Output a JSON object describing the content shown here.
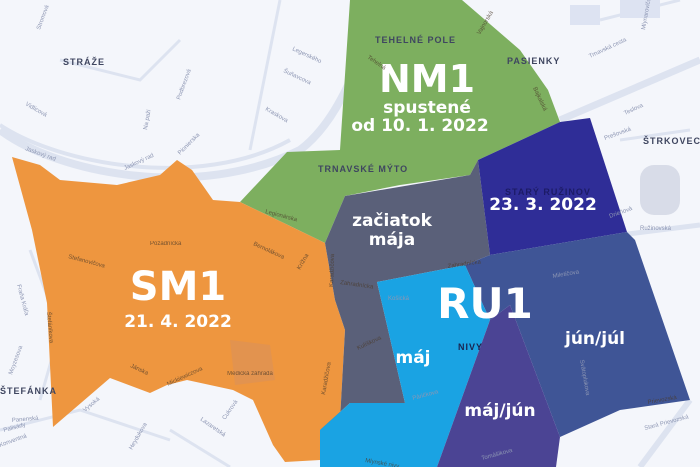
{
  "zones": [
    {
      "code": "NM1",
      "status_lines": [
        "spustené",
        "od 10. 1. 2022"
      ],
      "color": "#7daf5f"
    },
    {
      "code": "SM1",
      "status_lines": [
        "21. 4. 2022"
      ],
      "color": "#ee963f"
    },
    {
      "code": "RU1",
      "color": "#3f5596"
    },
    {
      "subzone": "Starý Ružinov",
      "label": "23. 3. 2022",
      "color": "#2f2d97"
    },
    {
      "subzone": "začiatok mája",
      "label_lines": [
        "začiatok",
        "mája"
      ],
      "color": "#5a6079"
    },
    {
      "subzone": "máj",
      "label": "máj",
      "color": "#1aa3e3"
    },
    {
      "subzone": "máj/jún",
      "label": "máj/jún",
      "color": "#4b4494"
    },
    {
      "subzone": "jún/júl",
      "label": "jún/júl",
      "color": "#3f5596"
    }
  ],
  "districts": [
    "STRÁŽE",
    "TEHELNÉ POLE",
    "PASIENKY",
    "TRNAVSKÉ MÝTO",
    "STARÝ RUŽINOV",
    "ŠTRKOVEC",
    "NIVY",
    "ŠTEFÁNKA"
  ],
  "streets": [
    "Jaskový rad",
    "Jaskový rad",
    "Podbrezová",
    "Pionierska",
    "Legionárska",
    "Vajnorská",
    "Bajkalská",
    "Zahradnícka",
    "Zahradnícka",
    "Krížna",
    "Karadžičova",
    "Karadžičova",
    "Mickiewiczova",
    "Jánska",
    "Štefánikova",
    "Ružinovská",
    "Prievozská",
    "Mlynské nivy",
    "Medická záhrada",
    "Kraskova",
    "Šuňavcova",
    "Legerského",
    "Trnavská cesta",
    "Tehelná",
    "Stefanovičova",
    "Pozadnícka",
    "Bernolákova",
    "Kulíškova",
    "Páričkova",
    "Košická",
    "Tomášikova",
    "Miletičova",
    "Svätoplukova",
    "Vysoká",
    "Heydukova",
    "Lazaretská",
    "Cukrová",
    "Palisády",
    "Stará Prievozská",
    "Drieňová",
    "Prešovská",
    "Teslova",
    "Mlynarovičova",
    "Vidlicová",
    "Na paži",
    "Fraňa Kráľa",
    "Moyzesova",
    "Panenská",
    "Konventná",
    "Stromová"
  ]
}
